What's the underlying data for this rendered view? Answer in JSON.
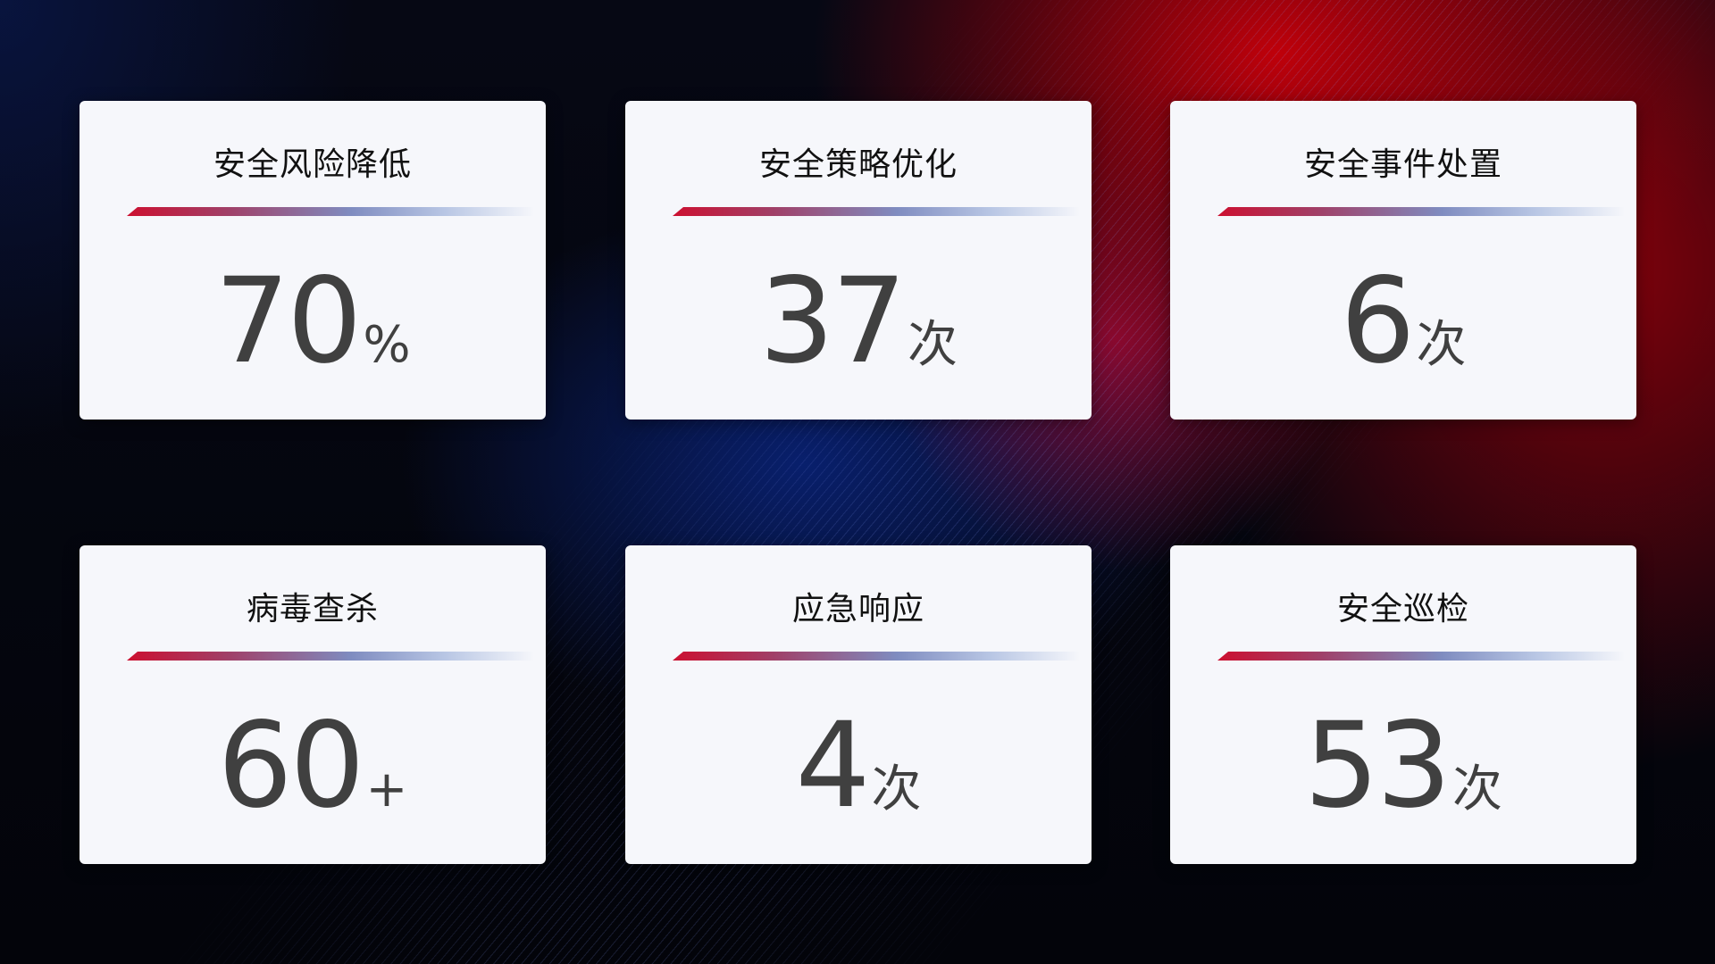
{
  "cards": [
    {
      "title": "安全风险降低",
      "value": "70",
      "unit": "%"
    },
    {
      "title": "安全策略优化",
      "value": "37",
      "unit": "次"
    },
    {
      "title": "安全事件处置",
      "value": "6",
      "unit": "次"
    },
    {
      "title": "病毒查杀",
      "value": "60",
      "unit": "+"
    },
    {
      "title": "应急响应",
      "value": "4",
      "unit": "次"
    },
    {
      "title": "安全巡检",
      "value": "53",
      "unit": "次"
    }
  ],
  "colors": {
    "accent_red": "#cc1030",
    "accent_blue": "#7f8cc0",
    "card_bg": "#f6f7fb",
    "value_text": "#404040"
  }
}
